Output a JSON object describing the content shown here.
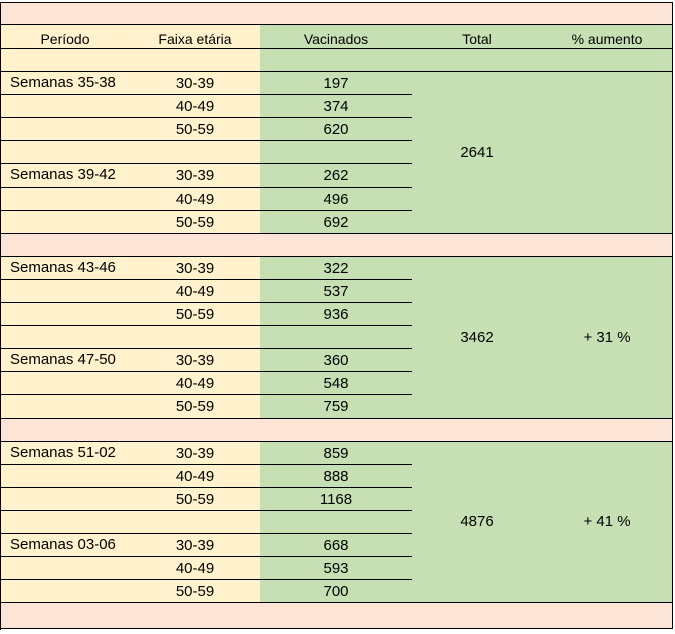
{
  "headers": {
    "periodo": "Período",
    "faixa": "Faixa etária",
    "vacinados": "Vacinados",
    "total": "Total",
    "aumento": "% aumento"
  },
  "groups": [
    {
      "total": "2641",
      "aumento": "",
      "blocks": [
        {
          "periodo": "Semanas 35-38",
          "rows": [
            {
              "faixa": "30-39",
              "vacinados": "197"
            },
            {
              "faixa": "40-49",
              "vacinados": "374"
            },
            {
              "faixa": "50-59",
              "vacinados": "620"
            }
          ]
        },
        {
          "periodo": "Semanas 39-42",
          "rows": [
            {
              "faixa": "30-39",
              "vacinados": "262"
            },
            {
              "faixa": "40-49",
              "vacinados": "496"
            },
            {
              "faixa": "50-59",
              "vacinados": "692"
            }
          ]
        }
      ]
    },
    {
      "total": "3462",
      "aumento": "+ 31 %",
      "blocks": [
        {
          "periodo": "Semanas 43-46",
          "rows": [
            {
              "faixa": "30-39",
              "vacinados": "322"
            },
            {
              "faixa": "40-49",
              "vacinados": "537"
            },
            {
              "faixa": "50-59",
              "vacinados": "936"
            }
          ]
        },
        {
          "periodo": "Semanas 47-50",
          "rows": [
            {
              "faixa": "30-39",
              "vacinados": "360"
            },
            {
              "faixa": "40-49",
              "vacinados": "548"
            },
            {
              "faixa": "50-59",
              "vacinados": "759"
            }
          ]
        }
      ]
    },
    {
      "total": "4876",
      "aumento": "+ 41 %",
      "blocks": [
        {
          "periodo": "Semanas 51-02",
          "rows": [
            {
              "faixa": "30-39",
              "vacinados": "859"
            },
            {
              "faixa": "40-49",
              "vacinados": "888"
            },
            {
              "faixa": "50-59",
              "vacinados": "1168"
            }
          ]
        },
        {
          "periodo": "Semanas 03-06",
          "rows": [
            {
              "faixa": "30-39",
              "vacinados": "668"
            },
            {
              "faixa": "40-49",
              "vacinados": "593"
            },
            {
              "faixa": "50-59",
              "vacinados": "700"
            }
          ]
        }
      ]
    }
  ],
  "colors": {
    "pink": "#fce4d6",
    "yellow": "#fff2cc",
    "green": "#c6e0b4",
    "border": "#000000"
  }
}
